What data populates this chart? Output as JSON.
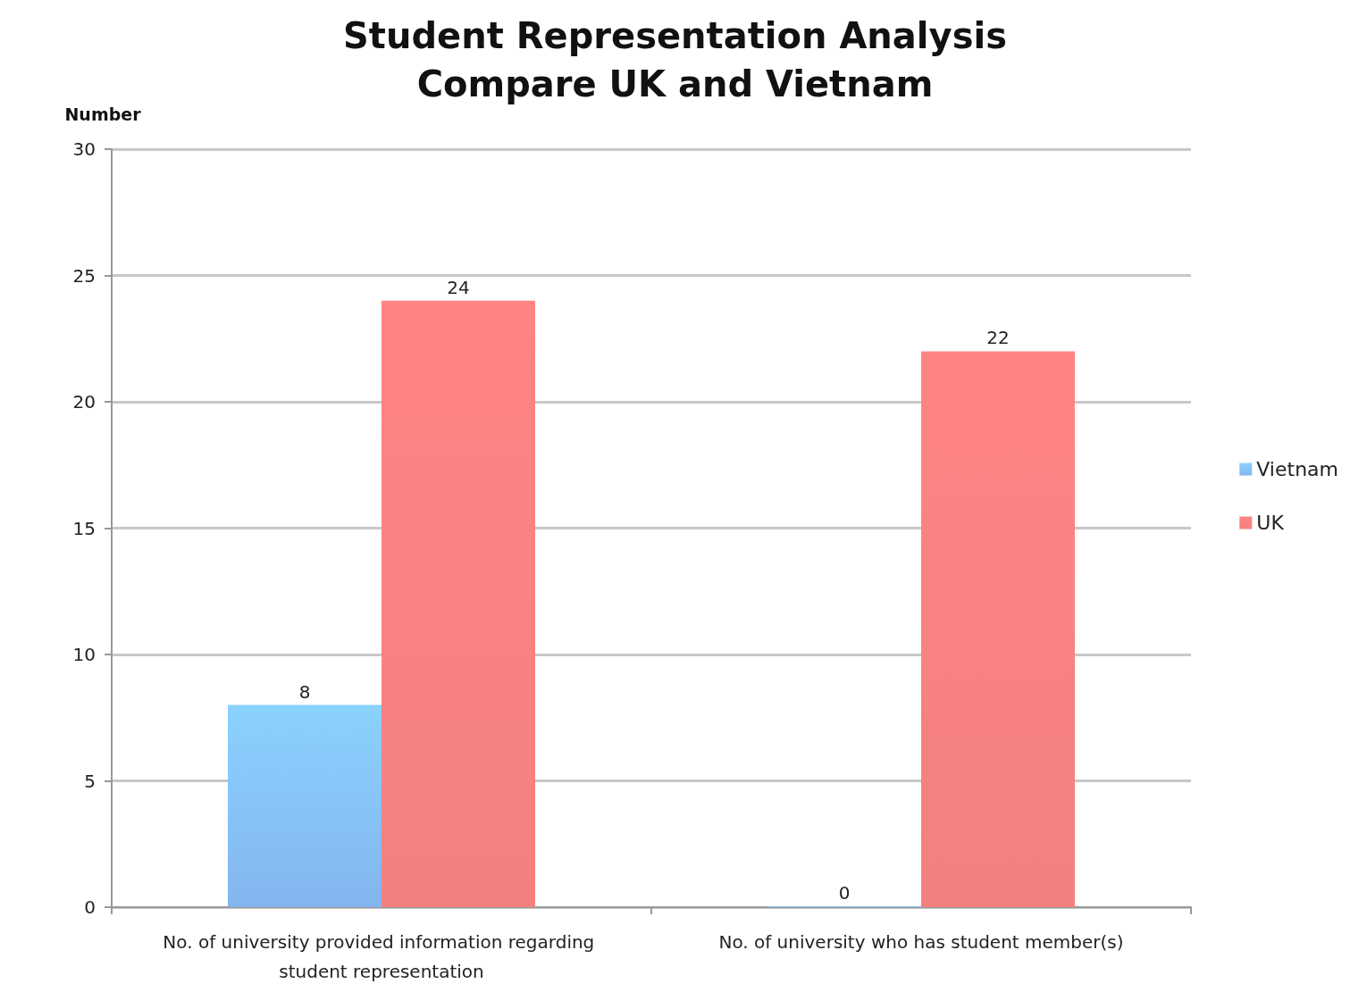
{
  "chart_data": {
    "type": "bar",
    "title": "Student Representation Analysis",
    "subtitle": "Compare UK and Vietnam",
    "ylabel": "Number",
    "categories": [
      "No. of university provided information regarding student representation",
      "No. of university who has student member(s)"
    ],
    "series": [
      {
        "name": "Vietnam",
        "color": "#6fa8ee",
        "values": [
          8,
          0
        ]
      },
      {
        "name": "UK",
        "color": "#f26a6a",
        "values": [
          24,
          22
        ]
      }
    ],
    "ylim": [
      0,
      30
    ],
    "yticks": [
      0,
      5,
      10,
      15,
      20,
      25,
      30
    ],
    "grid": "y",
    "legend": "right",
    "data_labels": true
  }
}
